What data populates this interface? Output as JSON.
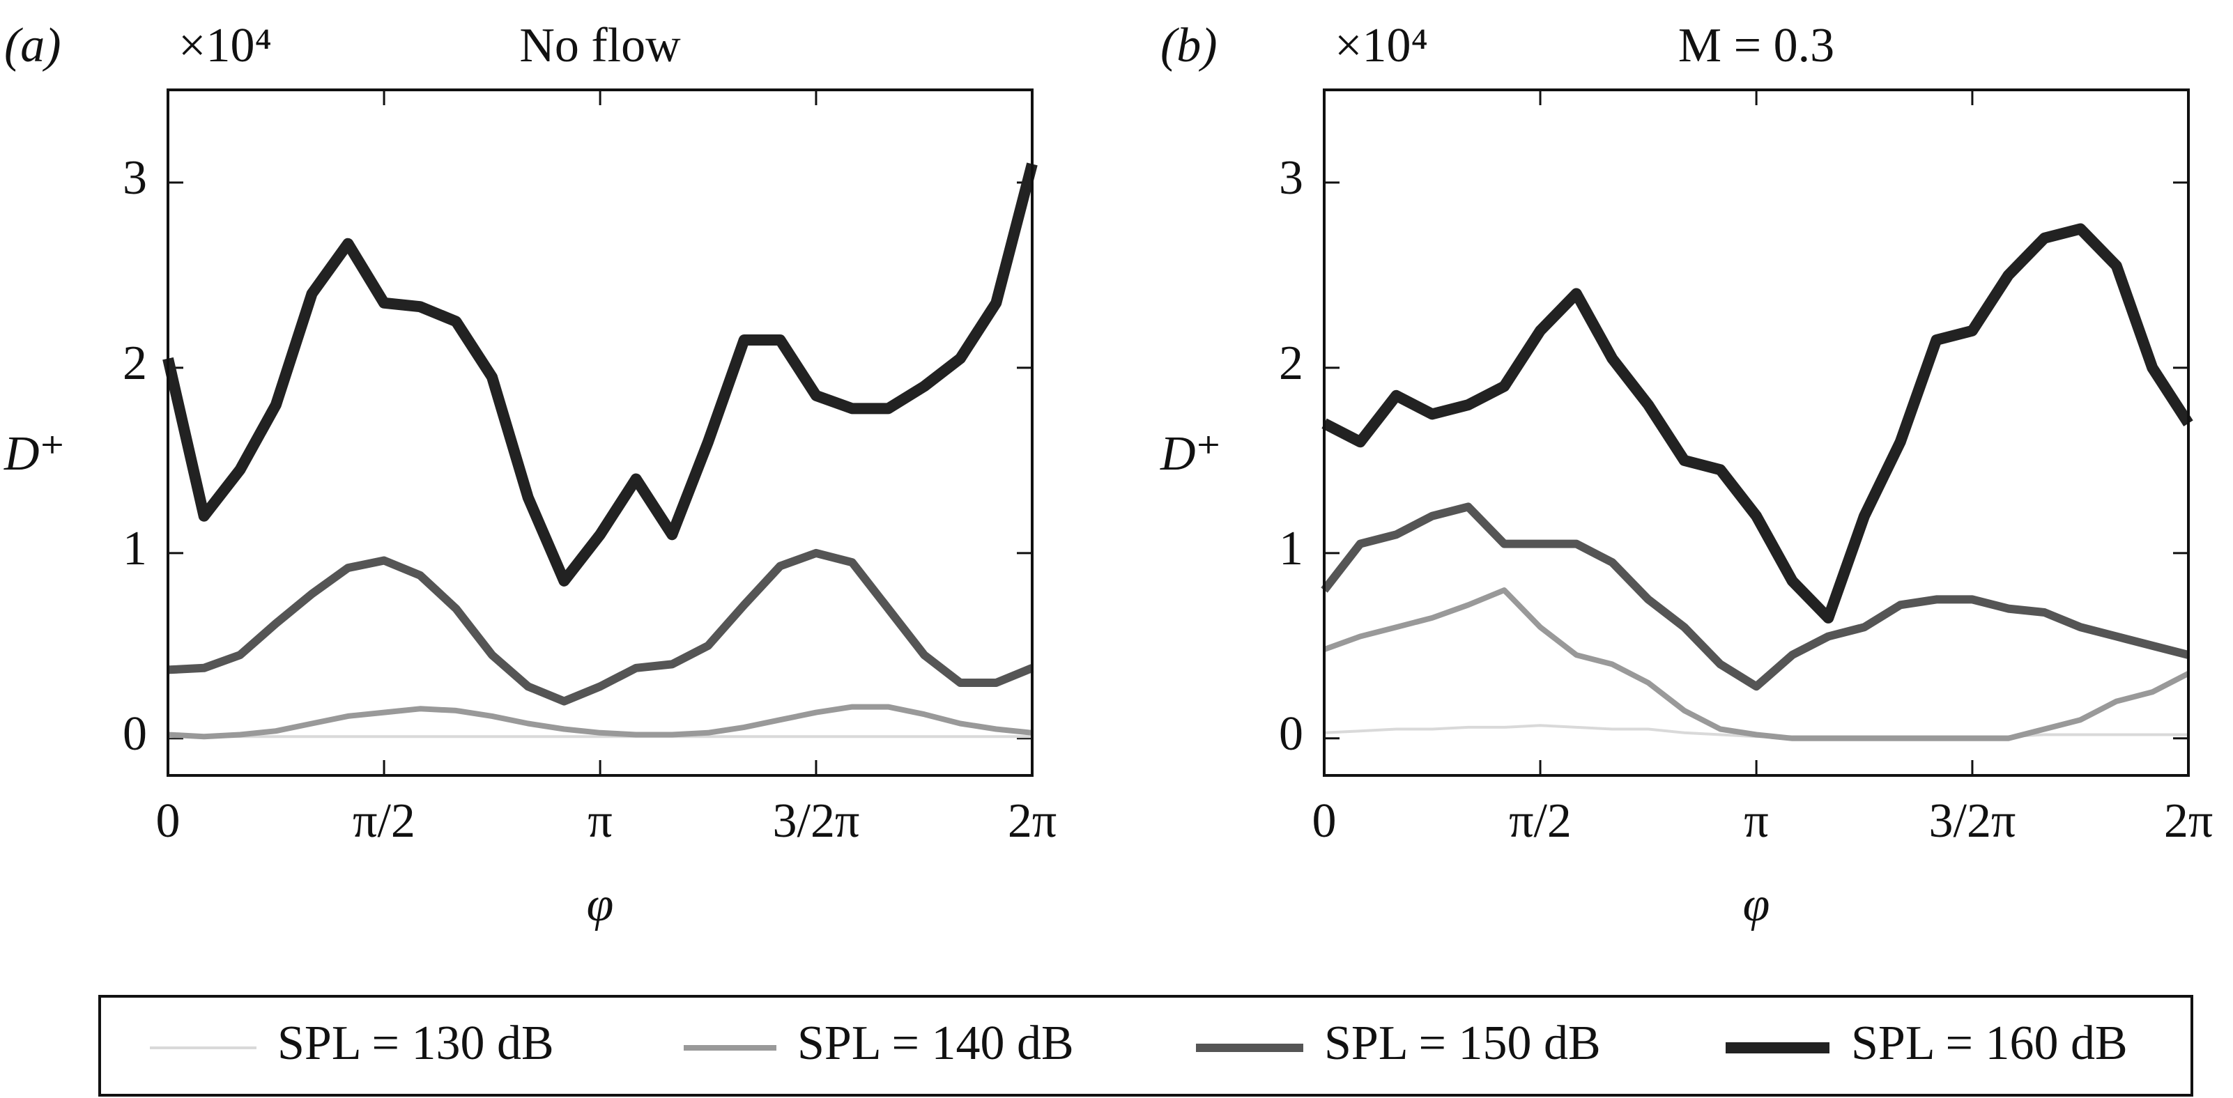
{
  "chart_data": [
    {
      "type": "line",
      "panel": "(a)",
      "title": "No flow",
      "multiplier": "×10⁴",
      "x_label": "φ",
      "y_label": "D⁺",
      "x": [
        0,
        0.262,
        0.524,
        0.785,
        1.047,
        1.309,
        1.571,
        1.833,
        2.094,
        2.356,
        2.618,
        2.88,
        3.142,
        3.403,
        3.665,
        3.927,
        4.189,
        4.451,
        4.712,
        4.974,
        5.236,
        5.498,
        5.76,
        6.021,
        6.283
      ],
      "xlim": [
        0,
        6.283
      ],
      "ylim": [
        -0.2,
        3.5
      ],
      "xticks": [
        {
          "value": 0,
          "label": "0"
        },
        {
          "value": 1.571,
          "label": "π/2"
        },
        {
          "value": 3.142,
          "label": "π"
        },
        {
          "value": 4.712,
          "label": "3/2π"
        },
        {
          "value": 6.283,
          "label": "2π"
        }
      ],
      "yticks": [
        0,
        1,
        2,
        3
      ],
      "series": [
        {
          "name": "SPL = 130 dB",
          "color": "#d9d9d9",
          "values": [
            0.01,
            0.01,
            0.01,
            0.01,
            0.01,
            0.01,
            0.01,
            0.01,
            0.01,
            0.01,
            0.01,
            0.01,
            0.01,
            0.01,
            0.01,
            0.01,
            0.01,
            0.01,
            0.01,
            0.01,
            0.01,
            0.01,
            0.01,
            0.01,
            0.01
          ]
        },
        {
          "name": "SPL = 140 dB",
          "color": "#999999",
          "values": [
            0.02,
            0.01,
            0.02,
            0.04,
            0.08,
            0.12,
            0.14,
            0.16,
            0.15,
            0.12,
            0.08,
            0.05,
            0.03,
            0.02,
            0.02,
            0.03,
            0.06,
            0.1,
            0.14,
            0.17,
            0.17,
            0.13,
            0.08,
            0.05,
            0.03
          ]
        },
        {
          "name": "SPL = 150 dB",
          "color": "#555555",
          "values": [
            0.37,
            0.38,
            0.45,
            0.62,
            0.78,
            0.92,
            0.96,
            0.88,
            0.7,
            0.45,
            0.28,
            0.2,
            0.28,
            0.38,
            0.4,
            0.5,
            0.72,
            0.93,
            1.0,
            0.95,
            0.7,
            0.45,
            0.3,
            0.3,
            0.38
          ]
        },
        {
          "name": "SPL = 160 dB",
          "color": "#222222",
          "values": [
            2.05,
            1.2,
            1.45,
            1.8,
            2.4,
            2.67,
            2.35,
            2.33,
            2.25,
            1.95,
            1.3,
            0.85,
            1.1,
            1.4,
            1.1,
            1.6,
            2.15,
            2.15,
            1.85,
            1.78,
            1.78,
            1.9,
            2.05,
            2.35,
            3.1
          ]
        }
      ]
    },
    {
      "type": "line",
      "panel": "(b)",
      "title": "M = 0.3",
      "multiplier": "×10⁴",
      "x_label": "φ",
      "y_label": "D⁺",
      "x": [
        0,
        0.262,
        0.524,
        0.785,
        1.047,
        1.309,
        1.571,
        1.833,
        2.094,
        2.356,
        2.618,
        2.88,
        3.142,
        3.403,
        3.665,
        3.927,
        4.189,
        4.451,
        4.712,
        4.974,
        5.236,
        5.498,
        5.76,
        6.021,
        6.283
      ],
      "xlim": [
        0,
        6.283
      ],
      "ylim": [
        -0.2,
        3.5
      ],
      "xticks": [
        {
          "value": 0,
          "label": "0"
        },
        {
          "value": 1.571,
          "label": "π/2"
        },
        {
          "value": 3.142,
          "label": "π"
        },
        {
          "value": 4.712,
          "label": "3/2π"
        },
        {
          "value": 6.283,
          "label": "2π"
        }
      ],
      "yticks": [
        0,
        1,
        2,
        3
      ],
      "series": [
        {
          "color": "#d9d9d9",
          "values": [
            0.03,
            0.04,
            0.05,
            0.05,
            0.06,
            0.06,
            0.07,
            0.06,
            0.05,
            0.05,
            0.03,
            0.02,
            0.01,
            0.01,
            0.01,
            0.01,
            0.01,
            0.01,
            0.01,
            0.01,
            0.02,
            0.02,
            0.02,
            0.02,
            0.02
          ]
        },
        {
          "color": "#999999",
          "values": [
            0.48,
            0.55,
            0.6,
            0.65,
            0.72,
            0.8,
            0.6,
            0.45,
            0.4,
            0.3,
            0.15,
            0.05,
            0.02,
            0,
            0,
            0,
            0,
            0,
            0,
            0,
            0.05,
            0.1,
            0.2,
            0.25,
            0.35
          ]
        },
        {
          "color": "#555555",
          "values": [
            0.8,
            1.05,
            1.1,
            1.2,
            1.25,
            1.05,
            1.05,
            1.05,
            0.95,
            0.75,
            0.6,
            0.4,
            0.28,
            0.45,
            0.55,
            0.6,
            0.72,
            0.75,
            0.75,
            0.7,
            0.68,
            0.6,
            0.55,
            0.5,
            0.45
          ]
        },
        {
          "color": "#222222",
          "values": [
            1.7,
            1.6,
            1.85,
            1.75,
            1.8,
            1.9,
            2.2,
            2.4,
            2.05,
            1.8,
            1.5,
            1.45,
            1.2,
            0.85,
            0.65,
            1.2,
            1.6,
            2.15,
            2.2,
            2.5,
            2.7,
            2.75,
            2.55,
            2.0,
            1.7
          ]
        }
      ]
    }
  ]
}
